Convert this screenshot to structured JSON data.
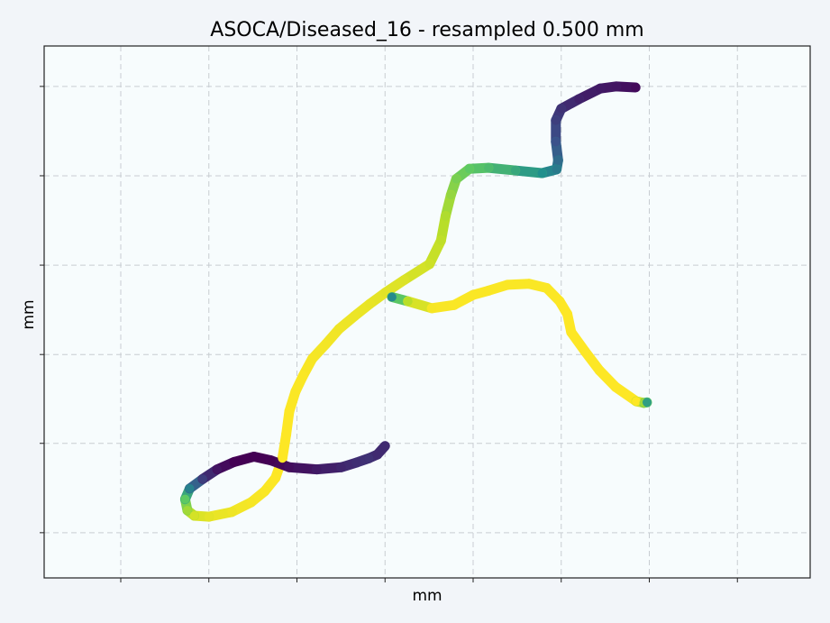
{
  "chart_data": {
    "type": "line",
    "title": "ASOCA/Diseased_16 - resampled 0.500 mm",
    "xlabel": "mm",
    "ylabel": "mm",
    "xlim": [
      0,
      100
    ],
    "ylim": [
      0,
      100
    ],
    "x_ticks": [
      10,
      21.5,
      33,
      44.5,
      56,
      67.5,
      79,
      90.5
    ],
    "y_ticks": [
      8.5,
      25.3,
      42,
      58.8,
      75.6,
      92.4
    ],
    "tick_labels_visible": false,
    "grid": true,
    "legend": "none",
    "colormap": [
      "#440154",
      "#3b528b",
      "#21908d",
      "#5dc963",
      "#b8de29",
      "#fde725"
    ],
    "series": [
      {
        "points": [
          [
            77.2,
            92.2,
            0.02
          ],
          [
            74.7,
            92.4,
            0.05
          ],
          [
            72.6,
            92.0,
            0.06
          ],
          [
            69.8,
            90.0,
            0.08
          ],
          [
            67.5,
            88.2,
            0.12
          ],
          [
            66.8,
            86.0,
            0.15
          ],
          [
            66.8,
            82.0,
            0.2
          ],
          [
            67.1,
            78.5,
            0.28
          ],
          [
            66.9,
            76.8,
            0.33
          ],
          [
            65.0,
            76.1,
            0.4
          ],
          [
            61.5,
            76.6,
            0.48
          ],
          [
            58.0,
            77.1,
            0.55
          ],
          [
            55.5,
            76.9,
            0.6
          ],
          [
            53.8,
            75.0,
            0.66
          ],
          [
            53.1,
            72.0,
            0.72
          ],
          [
            52.4,
            68.0,
            0.78
          ],
          [
            51.8,
            63.4,
            0.82
          ],
          [
            50.3,
            59.0,
            0.86
          ],
          [
            47.0,
            56.0,
            0.9
          ],
          [
            44.5,
            53.6,
            0.92
          ],
          [
            42.5,
            51.5,
            0.94
          ],
          [
            40.5,
            49.2,
            0.95
          ],
          [
            38.5,
            46.8,
            0.96
          ],
          [
            36.8,
            44.0,
            0.97
          ],
          [
            35.0,
            41.2,
            0.98
          ],
          [
            33.8,
            38.0,
            0.99
          ],
          [
            32.8,
            35.0,
            0.99
          ],
          [
            32.0,
            31.3,
            1.0
          ],
          [
            31.6,
            27.0,
            1.0
          ],
          [
            31.1,
            22.5,
            1.0
          ],
          [
            30.2,
            18.8,
            1.0
          ],
          [
            28.8,
            16.3,
            0.99
          ],
          [
            27.0,
            14.2,
            0.98
          ],
          [
            24.5,
            12.4,
            0.96
          ],
          [
            21.5,
            11.5,
            0.93
          ],
          [
            19.6,
            11.7,
            0.88
          ],
          [
            18.7,
            12.7,
            0.75
          ],
          [
            18.4,
            14.8,
            0.6
          ],
          [
            19.0,
            16.8,
            0.35
          ],
          [
            20.7,
            18.6,
            0.15
          ],
          [
            22.6,
            20.4,
            0.05
          ],
          [
            24.8,
            21.8,
            0.0
          ],
          [
            27.4,
            22.8,
            0.0
          ],
          [
            29.6,
            22.1,
            0.0
          ],
          [
            32.0,
            20.8,
            0.03
          ],
          [
            35.6,
            20.4,
            0.06
          ],
          [
            38.8,
            20.8,
            0.09
          ],
          [
            40.8,
            21.7,
            0.11
          ],
          [
            42.4,
            22.5,
            0.12
          ],
          [
            43.5,
            23.2,
            0.1
          ],
          [
            44.5,
            24.8,
            0.1
          ]
        ]
      },
      {
        "points": [
          [
            45.4,
            52.8,
            0.38
          ],
          [
            47.5,
            52.0,
            0.8
          ],
          [
            50.6,
            50.7,
            0.98
          ],
          [
            53.5,
            51.3,
            0.99
          ],
          [
            56.0,
            53.2,
            0.99
          ],
          [
            58.0,
            54.0,
            0.99
          ],
          [
            60.5,
            55.1,
            0.99
          ],
          [
            63.3,
            55.3,
            0.99
          ],
          [
            65.6,
            54.5,
            0.99
          ],
          [
            67.3,
            52.0,
            1.0
          ],
          [
            68.3,
            49.6,
            1.0
          ],
          [
            68.8,
            46.2,
            1.0
          ],
          [
            70.6,
            42.6,
            1.0
          ],
          [
            72.5,
            39.0,
            1.0
          ],
          [
            74.6,
            35.9,
            1.0
          ],
          [
            77.3,
            33.2,
            1.0
          ],
          [
            78.3,
            32.9,
            0.75
          ],
          [
            78.7,
            33.0,
            0.45
          ]
        ]
      }
    ]
  }
}
